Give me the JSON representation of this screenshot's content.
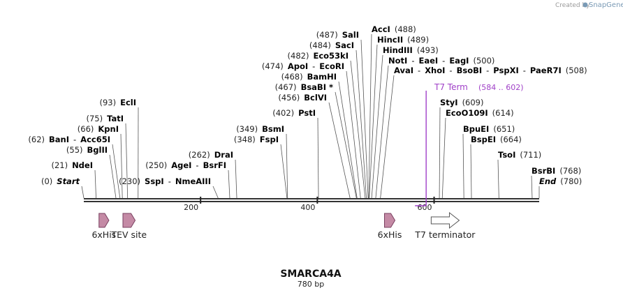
{
  "credit": {
    "text": "Created by",
    "brand": "SnapGene"
  },
  "sequence": {
    "name": "SMARCA4A",
    "length_label": "780 bp",
    "length": 780
  },
  "colors": {
    "feature_fill": "#c48aa5",
    "feature_outline": "#7a4060",
    "terminator_fill": "#ffffff",
    "t7_color": "#a040c8",
    "backbone": "#333333"
  },
  "ruler": [
    {
      "label": "200",
      "pos": 200
    },
    {
      "label": "400",
      "pos": 400
    },
    {
      "label": "600",
      "pos": 600
    }
  ],
  "sites": [
    {
      "parts": [
        {
          "num": "(0)"
        },
        {
          "name": "Start",
          "style": "term"
        }
      ],
      "pos": 0
    },
    {
      "parts": [
        {
          "num": "(21)"
        },
        {
          "name": "NdeI"
        }
      ],
      "pos": 21
    },
    {
      "parts": [
        {
          "num": "(55)"
        },
        {
          "name": "BglII"
        }
      ],
      "pos": 55
    },
    {
      "parts": [
        {
          "num": "(62)"
        },
        {
          "name": "BanI"
        },
        {
          "sep": "-"
        },
        {
          "name": "Acc65I"
        }
      ],
      "pos": 62
    },
    {
      "parts": [
        {
          "num": "(66)"
        },
        {
          "name": "KpnI"
        }
      ],
      "pos": 66
    },
    {
      "parts": [
        {
          "num": "(75)"
        },
        {
          "name": "TatI"
        }
      ],
      "pos": 75
    },
    {
      "parts": [
        {
          "num": "(93)"
        },
        {
          "name": "EclI"
        }
      ],
      "pos": 93
    },
    {
      "parts": [
        {
          "num": "(230)"
        },
        {
          "name": "SspI"
        },
        {
          "sep": "-"
        },
        {
          "name": "NmeAIII"
        }
      ],
      "pos": 230
    },
    {
      "parts": [
        {
          "num": "(250)"
        },
        {
          "name": "AgeI"
        },
        {
          "sep": "-"
        },
        {
          "name": "BsrFI"
        }
      ],
      "pos": 250
    },
    {
      "parts": [
        {
          "num": "(262)"
        },
        {
          "name": "DraI"
        }
      ],
      "pos": 262
    },
    {
      "parts": [
        {
          "num": "(348)"
        },
        {
          "name": "FspI"
        }
      ],
      "pos": 348
    },
    {
      "parts": [
        {
          "num": "(349)"
        },
        {
          "name": "BsmI"
        }
      ],
      "pos": 349
    },
    {
      "parts": [
        {
          "num": "(402)"
        },
        {
          "name": "PstI"
        }
      ],
      "pos": 402
    },
    {
      "parts": [
        {
          "num": "(456)"
        },
        {
          "name": "BclVI"
        }
      ],
      "pos": 456
    },
    {
      "parts": [
        {
          "num": "(467)"
        },
        {
          "name": "BsaBI *"
        }
      ],
      "pos": 467
    },
    {
      "parts": [
        {
          "num": "(468)"
        },
        {
          "name": "BamHI"
        }
      ],
      "pos": 468
    },
    {
      "parts": [
        {
          "num": "(474)"
        },
        {
          "name": "ApoI"
        },
        {
          "sep": "-"
        },
        {
          "name": "EcoRI"
        }
      ],
      "pos": 474
    },
    {
      "parts": [
        {
          "num": "(482)"
        },
        {
          "name": "Eco53kI"
        }
      ],
      "pos": 482
    },
    {
      "parts": [
        {
          "num": "(484)"
        },
        {
          "name": "SacI"
        }
      ],
      "pos": 484
    },
    {
      "parts": [
        {
          "num": "(487)"
        },
        {
          "name": "SalI"
        }
      ],
      "pos": 487
    },
    {
      "parts": [
        {
          "name": "AccI"
        },
        {
          "num": "(488)"
        }
      ],
      "pos": 488
    },
    {
      "parts": [
        {
          "name": "HincII"
        },
        {
          "num": "(489)"
        }
      ],
      "pos": 489
    },
    {
      "parts": [
        {
          "name": "HindIII"
        },
        {
          "num": "(493)"
        }
      ],
      "pos": 493
    },
    {
      "parts": [
        {
          "name": "NotI"
        },
        {
          "sep": "-"
        },
        {
          "name": "EaeI"
        },
        {
          "sep": "-"
        },
        {
          "name": "EagI"
        },
        {
          "num": "(500)"
        }
      ],
      "pos": 500
    },
    {
      "parts": [
        {
          "name": "AvaI"
        },
        {
          "sep": "-"
        },
        {
          "name": "XhoI"
        },
        {
          "sep": "-"
        },
        {
          "name": "BsoBI"
        },
        {
          "sep": "-"
        },
        {
          "name": "PspXI"
        },
        {
          "sep": "-"
        },
        {
          "name": "PaeR7I"
        },
        {
          "num": "(508)"
        }
      ],
      "pos": 508
    },
    {
      "parts": [
        {
          "name": "StyI"
        },
        {
          "num": "(609)"
        }
      ],
      "pos": 609
    },
    {
      "parts": [
        {
          "name": "EcoO109I"
        },
        {
          "num": "(614)"
        }
      ],
      "pos": 614
    },
    {
      "parts": [
        {
          "name": "BpuEI"
        },
        {
          "num": "(651)"
        }
      ],
      "pos": 651
    },
    {
      "parts": [
        {
          "name": "BspEI"
        },
        {
          "num": "(664)"
        }
      ],
      "pos": 664
    },
    {
      "parts": [
        {
          "name": "TsoI"
        },
        {
          "num": "(711)"
        }
      ],
      "pos": 711
    },
    {
      "parts": [
        {
          "name": "BsrBI"
        },
        {
          "num": "(768)"
        }
      ],
      "pos": 768
    },
    {
      "parts": [
        {
          "name": "End",
          "style": "term"
        },
        {
          "num": "(780)"
        }
      ],
      "pos": 780
    }
  ],
  "t7_term": {
    "name": "T7 Term",
    "range": "(584 .. 602)",
    "start": 584,
    "end": 602
  },
  "features": [
    {
      "label": "6xHis",
      "start": 26,
      "end": 43,
      "kind": "arrow"
    },
    {
      "label": "TEV site",
      "start": 67,
      "end": 88,
      "kind": "arrow"
    },
    {
      "label": "6xHis",
      "start": 515,
      "end": 533,
      "kind": "arrow"
    },
    {
      "label": "T7 terminator",
      "start": 595,
      "end": 643,
      "kind": "terminator"
    }
  ]
}
